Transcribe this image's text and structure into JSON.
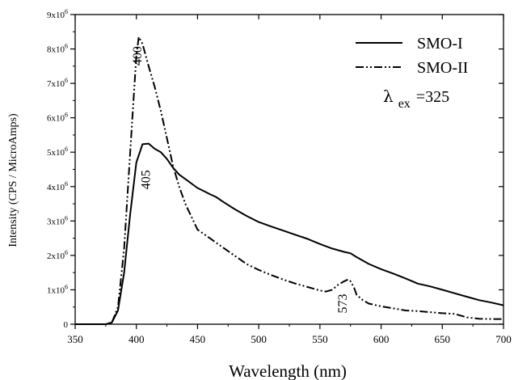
{
  "chart_data": {
    "type": "line",
    "xlabel": "Wavelength (nm)",
    "ylabel": "Intensity (CPS / MicroAmps)",
    "xlim": [
      350,
      700
    ],
    "ylim": [
      0,
      9000000
    ],
    "xticks": [
      350,
      400,
      450,
      500,
      550,
      600,
      650,
      700
    ],
    "xtick_labels": [
      "350",
      "400",
      "450",
      "500",
      "550",
      "600",
      "650",
      "700"
    ],
    "yticks": [
      0,
      1000000,
      2000000,
      3000000,
      4000000,
      5000000,
      6000000,
      7000000,
      8000000,
      9000000
    ],
    "ytick_labels": [
      {
        "base": "0",
        "exp": ""
      },
      {
        "base": "1x10",
        "exp": "6"
      },
      {
        "base": "2x10",
        "exp": "6"
      },
      {
        "base": "3x10",
        "exp": "6"
      },
      {
        "base": "4x10",
        "exp": "6"
      },
      {
        "base": "5x10",
        "exp": "6"
      },
      {
        "base": "6x10",
        "exp": "6"
      },
      {
        "base": "7x10",
        "exp": "6"
      },
      {
        "base": "8x10",
        "exp": "6"
      },
      {
        "base": "9x10",
        "exp": "6"
      }
    ],
    "legend_position": "top-right",
    "grid": false,
    "series": [
      {
        "name": "SMO-I",
        "line_style": "solid",
        "x": [
          350,
          375,
          380,
          385,
          390,
          395,
          400,
          405,
          410,
          415,
          420,
          425,
          430,
          435,
          440,
          450,
          460,
          465,
          470,
          480,
          490,
          500,
          510,
          520,
          530,
          540,
          550,
          560,
          570,
          575,
          580,
          590,
          600,
          610,
          620,
          630,
          640,
          650,
          660,
          670,
          680,
          690,
          700
        ],
        "y": [
          0,
          0,
          50000,
          400000,
          1500000,
          3200000,
          4700000,
          5230000,
          5250000,
          5100000,
          5000000,
          4800000,
          4550000,
          4350000,
          4220000,
          3960000,
          3780000,
          3700000,
          3580000,
          3350000,
          3150000,
          2970000,
          2840000,
          2720000,
          2600000,
          2480000,
          2330000,
          2200000,
          2100000,
          2060000,
          1950000,
          1750000,
          1600000,
          1470000,
          1330000,
          1180000,
          1100000,
          1000000,
          900000,
          800000,
          700000,
          630000,
          550000
        ]
      },
      {
        "name": "SMO-II",
        "line_style": "dash-dot-dot",
        "x": [
          350,
          375,
          380,
          385,
          390,
          395,
          400,
          402,
          405,
          410,
          415,
          420,
          425,
          430,
          435,
          440,
          450,
          460,
          470,
          480,
          490,
          500,
          510,
          520,
          530,
          540,
          550,
          555,
          560,
          565,
          570,
          573,
          575,
          578,
          580,
          585,
          590,
          600,
          610,
          620,
          630,
          640,
          650,
          660,
          670,
          680,
          690,
          700
        ],
        "y": [
          0,
          0,
          50000,
          500000,
          2200000,
          5000000,
          7800000,
          8350000,
          8150000,
          7500000,
          6900000,
          6200000,
          5400000,
          4600000,
          4000000,
          3500000,
          2750000,
          2500000,
          2250000,
          2000000,
          1750000,
          1580000,
          1430000,
          1300000,
          1180000,
          1080000,
          980000,
          950000,
          1000000,
          1150000,
          1250000,
          1300000,
          1250000,
          1050000,
          850000,
          700000,
          600000,
          520000,
          460000,
          400000,
          380000,
          350000,
          320000,
          300000,
          200000,
          160000,
          150000,
          150000
        ]
      }
    ],
    "annotations": [
      {
        "text": "400",
        "x": 404,
        "y": 7800000,
        "rotate": -90
      },
      {
        "text": "405",
        "x": 411,
        "y": 4200000,
        "rotate": -90
      },
      {
        "text": "573",
        "x": 572,
        "y": 600000,
        "rotate": -90
      }
    ],
    "excitation_label": {
      "symbol": "λ",
      "subscript": "ex",
      "value": "=325"
    }
  }
}
